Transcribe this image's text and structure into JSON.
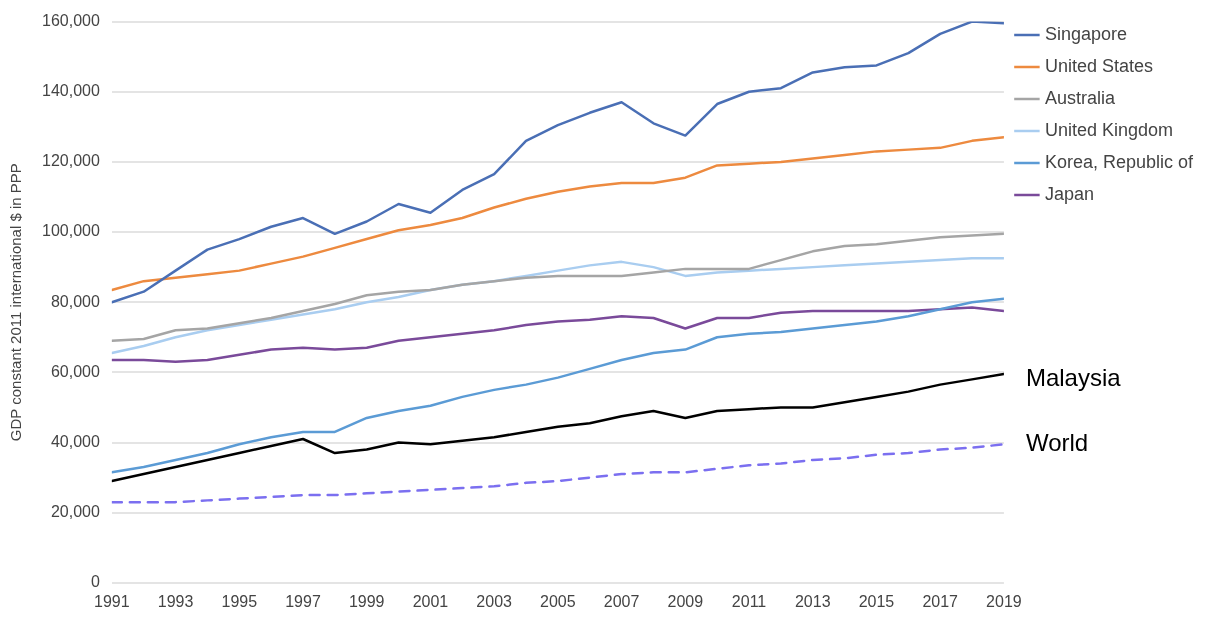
{
  "chart_data": {
    "type": "line",
    "ylabel": "GDP constant 2011 international $ in PPP",
    "x": [
      1991,
      1992,
      1993,
      1994,
      1995,
      1996,
      1997,
      1998,
      1999,
      2000,
      2001,
      2002,
      2003,
      2004,
      2005,
      2006,
      2007,
      2008,
      2009,
      2010,
      2011,
      2012,
      2013,
      2014,
      2015,
      2016,
      2017,
      2018,
      2019
    ],
    "xlim": [
      1991,
      2019
    ],
    "xticks": [
      1991,
      1993,
      1995,
      1997,
      1999,
      2001,
      2003,
      2005,
      2007,
      2009,
      2011,
      2013,
      2015,
      2017,
      2019
    ],
    "ylim": [
      0,
      160000
    ],
    "yticks": [
      {
        "value": 0,
        "label": "0"
      },
      {
        "value": 20000,
        "label": "20,000"
      },
      {
        "value": 40000,
        "label": "40,000"
      },
      {
        "value": 60000,
        "label": "60,000"
      },
      {
        "value": 80000,
        "label": "80,000"
      },
      {
        "value": 100000,
        "label": "100,000"
      },
      {
        "value": 120000,
        "label": "120,000"
      },
      {
        "value": 140000,
        "label": "140,000"
      },
      {
        "value": 160000,
        "label": "160,000"
      }
    ],
    "grid": "y",
    "legend": "top right",
    "marker": "none",
    "series": [
      {
        "name": "Singapore",
        "color": "#4a6fb5",
        "values": [
          80000,
          83000,
          89000,
          95000,
          98000,
          101500,
          104000,
          99500,
          103000,
          108000,
          105500,
          112000,
          116500,
          126000,
          130500,
          134000,
          137000,
          131000,
          127500,
          136500,
          140000,
          141000,
          145500,
          147000,
          147500,
          151000,
          156500,
          160000,
          159500
        ]
      },
      {
        "name": "United States",
        "color": "#ed8a3f",
        "values": [
          83500,
          86000,
          87000,
          88000,
          89000,
          91000,
          93000,
          95500,
          98000,
          100500,
          102000,
          104000,
          107000,
          109500,
          111500,
          113000,
          114000,
          114000,
          115500,
          119000,
          119500,
          120000,
          121000,
          122000,
          123000,
          123500,
          124000,
          126000,
          127000
        ]
      },
      {
        "name": "Australia",
        "color": "#a5a5a5",
        "values": [
          69000,
          69500,
          72000,
          72500,
          74000,
          75500,
          77500,
          79500,
          82000,
          83000,
          83500,
          85000,
          86000,
          87000,
          87500,
          87500,
          87500,
          88500,
          89500,
          89500,
          89500,
          92000,
          94500,
          96000,
          96500,
          97500,
          98500,
          99000,
          99500
        ]
      },
      {
        "name": "United Kingdom",
        "color": "#a9cdf0",
        "values": [
          65500,
          67500,
          70000,
          72000,
          73500,
          75000,
          76500,
          78000,
          80000,
          81500,
          83500,
          85000,
          86000,
          87500,
          89000,
          90500,
          91500,
          90000,
          87500,
          88500,
          89000,
          89500,
          90000,
          90500,
          91000,
          91500,
          92000,
          92500,
          92500
        ]
      },
      {
        "name": "Korea, Republic of",
        "color": "#5b9bd5",
        "values": [
          31500,
          33000,
          35000,
          37000,
          39500,
          41500,
          43000,
          43000,
          47000,
          49000,
          50500,
          53000,
          55000,
          56500,
          58500,
          61000,
          63500,
          65500,
          66500,
          70000,
          71000,
          71500,
          72500,
          73500,
          74500,
          76000,
          78000,
          80000,
          81000
        ]
      },
      {
        "name": "Japan",
        "color": "#7a4a9a",
        "values": [
          63500,
          63500,
          63000,
          63500,
          65000,
          66500,
          67000,
          66500,
          67000,
          69000,
          70000,
          71000,
          72000,
          73500,
          74500,
          75000,
          76000,
          75500,
          72500,
          75500,
          75500,
          77000,
          77500,
          77500,
          77500,
          77500,
          78000,
          78500,
          77500
        ]
      },
      {
        "color": "#000000",
        "values": [
          29000,
          31000,
          33000,
          35000,
          37000,
          39000,
          41000,
          37000,
          38000,
          40000,
          39500,
          40500,
          41500,
          43000,
          44500,
          45500,
          47500,
          49000,
          47000,
          49000,
          49500,
          50000,
          50000,
          51500,
          53000,
          54500,
          56500,
          58000,
          59500
        ]
      },
      {
        "color": "#7b6ff0",
        "line_style": "dashed",
        "values": [
          23000,
          23000,
          23000,
          23500,
          24000,
          24500,
          25000,
          25000,
          25500,
          26000,
          26500,
          27000,
          27500,
          28500,
          29000,
          30000,
          31000,
          31500,
          31500,
          32500,
          33500,
          34000,
          35000,
          35500,
          36500,
          37000,
          38000,
          38500,
          39500
        ]
      }
    ],
    "annotations": [
      {
        "text": "Malaysia",
        "x": 2019,
        "y": 58000
      },
      {
        "text": "World",
        "x": 2019,
        "y": 39500
      }
    ]
  }
}
